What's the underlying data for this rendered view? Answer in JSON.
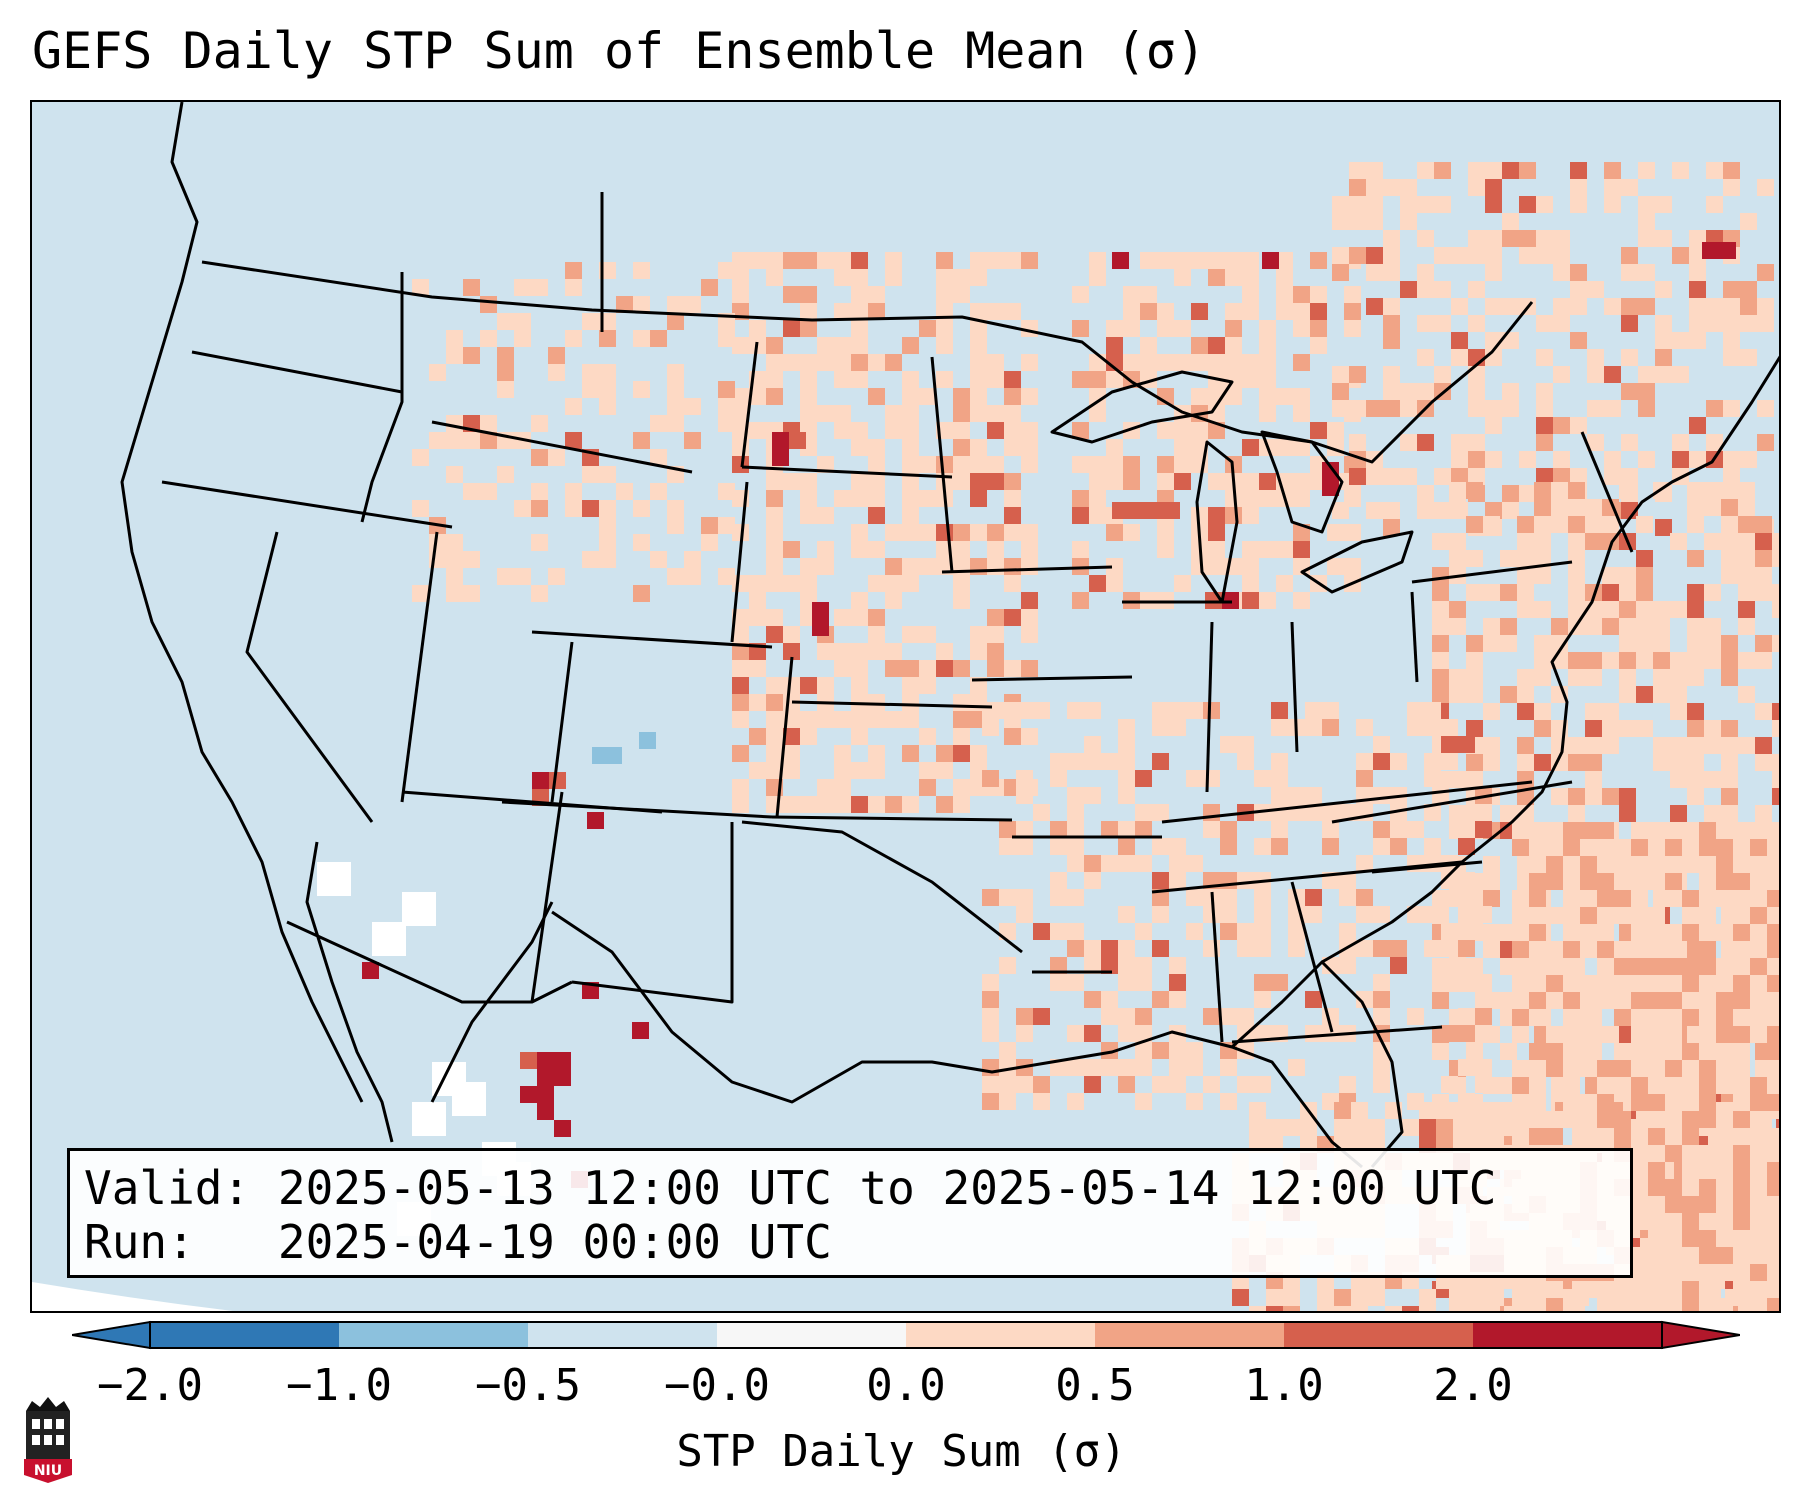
{
  "title": "GEFS Daily STP Sum of Ensemble Mean (σ)",
  "info": {
    "valid_label": "Valid:",
    "valid_range": "2025-05-13 12:00 UTC to 2025-05-14 12:00 UTC",
    "run_label": "Run:",
    "run_time": "2025-04-19 00:00 UTC"
  },
  "colorbar": {
    "label": "STP Daily Sum (σ)",
    "ticks": [
      "−2.0",
      "−1.0",
      "−0.5",
      "−0.0",
      "0.0",
      "0.5",
      "1.0",
      "2.0"
    ],
    "colors": [
      "#2f78b5",
      "#8cc1dd",
      "#cfe3ee",
      "#f7f7f7",
      "#fdd9c4",
      "#f1a486",
      "#d6604d",
      "#b2182b"
    ],
    "bounds": [
      -2.0,
      -1.0,
      -0.5,
      0.0,
      0.5,
      1.0,
      2.0
    ]
  },
  "logo": {
    "text": "NIU",
    "icon": "niu-logo-icon"
  },
  "palette": {
    "background": "#cfe3ee",
    "light": "#fdd9c4",
    "medium": "#f1a486",
    "strong": "#d6604d",
    "extreme": "#b2182b",
    "white": "#ffffff",
    "blue": "#8cc1dd"
  }
}
